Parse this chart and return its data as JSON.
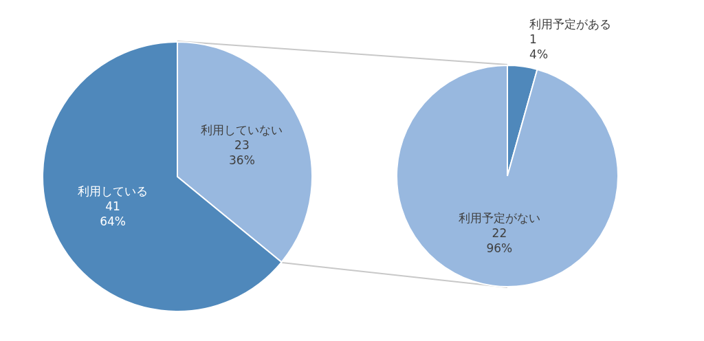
{
  "chart_data": [
    {
      "type": "pie",
      "categories": [
        "利用していない",
        "利用している"
      ],
      "values": [
        23,
        41
      ],
      "colors": [
        "#98b8df",
        "#4f88bb"
      ],
      "value_labels": [
        "23\n36%",
        "41\n64%"
      ]
    },
    {
      "type": "pie",
      "categories": [
        "利用予定がある",
        "利用予定がない"
      ],
      "values": [
        1,
        22
      ],
      "colors": [
        "#4f88bb",
        "#98b8df"
      ],
      "value_labels": [
        "1\n4%",
        "22\n96%"
      ]
    }
  ]
}
